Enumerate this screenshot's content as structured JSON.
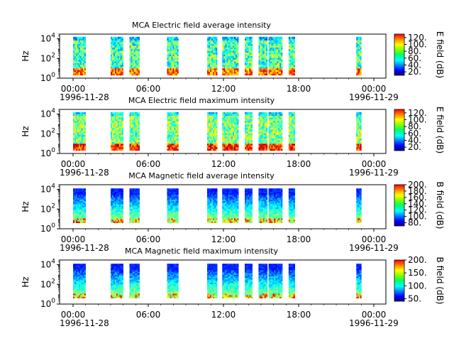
{
  "chart_data": [
    {
      "type": "heatmap",
      "title": "MCA  Electric field average intensity",
      "ylabel": "Hz",
      "y_ticks": [
        "10^0",
        "10^2",
        "10^4"
      ],
      "y_scale": "log",
      "ylim_hz": [
        1,
        30000
      ],
      "x_ticks": [
        "00:00",
        "06:00",
        "12:00",
        "18:00",
        "00:00"
      ],
      "x_date_start": "1996-11-28",
      "x_date_end": "1996-11-29",
      "colorbar_label": "E field (dB)",
      "colorbar_ticks": [
        20,
        40,
        60,
        80,
        100,
        120
      ],
      "colorbar_range": [
        10,
        130
      ],
      "data_segments_hours": [
        [
          0.0,
          1.0
        ],
        [
          3.0,
          4.0
        ],
        [
          4.5,
          5.3
        ],
        [
          7.5,
          8.4
        ],
        [
          10.7,
          11.5
        ],
        [
          11.9,
          13.2
        ],
        [
          13.7,
          14.3
        ],
        [
          14.8,
          15.5
        ],
        [
          15.6,
          16.7
        ],
        [
          17.2,
          17.7
        ],
        [
          22.6,
          23.0
        ]
      ]
    },
    {
      "type": "heatmap",
      "title": "MCA  Electric field maximum intensity",
      "ylabel": "Hz",
      "y_ticks": [
        "10^0",
        "10^2",
        "10^4"
      ],
      "y_scale": "log",
      "ylim_hz": [
        1,
        30000
      ],
      "x_ticks": [
        "00:00",
        "06:00",
        "12:00",
        "18:00",
        "00:00"
      ],
      "x_date_start": "1996-11-28",
      "x_date_end": "1996-11-29",
      "colorbar_label": "E field (dB)",
      "colorbar_ticks": [
        20,
        40,
        60,
        80,
        100,
        120
      ],
      "colorbar_range": [
        10,
        130
      ],
      "data_segments_hours": [
        [
          0.0,
          1.0
        ],
        [
          3.0,
          4.0
        ],
        [
          4.5,
          5.3
        ],
        [
          7.5,
          8.4
        ],
        [
          10.7,
          11.5
        ],
        [
          11.9,
          13.2
        ],
        [
          13.7,
          14.3
        ],
        [
          14.8,
          15.5
        ],
        [
          15.6,
          16.7
        ],
        [
          17.2,
          17.7
        ],
        [
          22.6,
          23.0
        ]
      ]
    },
    {
      "type": "heatmap",
      "title": "MCA  Magnetic field average intensity",
      "ylabel": "Hz",
      "y_ticks": [
        "10^0",
        "10^2",
        "10^4"
      ],
      "y_scale": "log",
      "ylim_hz": [
        1,
        30000
      ],
      "x_ticks": [
        "00:00",
        "06:00",
        "12:00",
        "18:00",
        "00:00"
      ],
      "x_date_start": "1996-11-28",
      "x_date_end": "1996-11-29",
      "colorbar_label": "B field (dB)",
      "colorbar_ticks": [
        80,
        100,
        120,
        140,
        160,
        180,
        200
      ],
      "colorbar_range": [
        70,
        200
      ],
      "data_segments_hours": [
        [
          0.0,
          1.0
        ],
        [
          3.0,
          4.0
        ],
        [
          4.5,
          5.3
        ],
        [
          7.5,
          8.4
        ],
        [
          10.7,
          11.5
        ],
        [
          11.9,
          13.2
        ],
        [
          13.7,
          14.3
        ],
        [
          14.8,
          15.5
        ],
        [
          15.6,
          16.7
        ],
        [
          17.2,
          17.7
        ],
        [
          22.6,
          23.0
        ]
      ]
    },
    {
      "type": "heatmap",
      "title": "MCA  Magnetic field maximum intensity",
      "ylabel": "Hz",
      "y_ticks": [
        "10^0",
        "10^2",
        "10^4"
      ],
      "y_scale": "log",
      "ylim_hz": [
        1,
        30000
      ],
      "x_ticks": [
        "00:00",
        "06:00",
        "12:00",
        "18:00",
        "00:00"
      ],
      "x_date_start": "1996-11-28",
      "x_date_end": "1996-11-29",
      "colorbar_label": "B field (dB)",
      "colorbar_ticks": [
        50,
        100,
        150,
        200
      ],
      "colorbar_range": [
        40,
        200
      ],
      "data_segments_hours": [
        [
          0.0,
          1.0
        ],
        [
          3.0,
          4.0
        ],
        [
          4.5,
          5.3
        ],
        [
          7.5,
          8.4
        ],
        [
          10.7,
          11.5
        ],
        [
          11.9,
          13.2
        ],
        [
          13.7,
          14.3
        ],
        [
          14.8,
          15.5
        ],
        [
          15.6,
          16.7
        ],
        [
          17.2,
          17.7
        ],
        [
          22.6,
          23.0
        ]
      ]
    }
  ]
}
